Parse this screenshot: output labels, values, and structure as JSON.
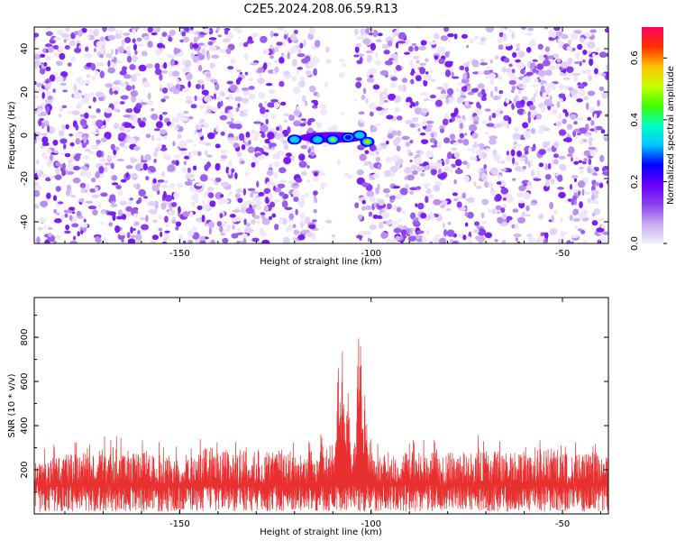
{
  "figure_title": "C2E5.2024.208.06.59.R13",
  "chart_data": [
    {
      "type": "heatmap",
      "title": "C2E5.2024.208.06.59.R13",
      "xlabel": "Height of straight line (km)",
      "ylabel": "Frequency (Hz)",
      "xlim": [
        -188,
        -38
      ],
      "ylim": [
        -50,
        50
      ],
      "x_ticks": [
        -150,
        -100,
        -50
      ],
      "y_ticks": [
        -40,
        -20,
        0,
        20,
        40
      ],
      "grid": false,
      "colorbar": {
        "label": "Normalized spectral amplitude",
        "range": [
          0.0,
          0.7
        ],
        "ticks": [
          0.0,
          0.2,
          0.4,
          0.6
        ],
        "colormap": [
          "#f2f0ff",
          "#c7a8f0",
          "#8a3cf0",
          "#6a00ff",
          "#0000ff",
          "#00c8ff",
          "#00ffc0",
          "#40ff00",
          "#c8ff00",
          "#ffc000",
          "#ff3000",
          "#ff0060"
        ]
      },
      "background_color": "#ffffff",
      "noise_color": "#8a3cf0",
      "empty_band_km": [
        -114,
        -104
      ],
      "signal_features": [
        {
          "x": -120,
          "y": -2,
          "amplitude": 0.3
        },
        {
          "x": -114,
          "y": -2,
          "amplitude": 0.25
        },
        {
          "x": -110,
          "y": -2,
          "amplitude": 0.5
        },
        {
          "x": -106,
          "y": -1,
          "amplitude": 0.35
        },
        {
          "x": -103,
          "y": 0,
          "amplitude": 0.4
        },
        {
          "x": -101,
          "y": -3,
          "amplitude": 0.6
        }
      ]
    },
    {
      "type": "line",
      "xlabel": "Height of straight line (km)",
      "ylabel": "SNR (10 * v/v)",
      "xlim": [
        -188,
        -38
      ],
      "ylim": [
        0,
        980
      ],
      "x_ticks": [
        -150,
        -100,
        -50
      ],
      "y_ticks": [
        200,
        400,
        600,
        800
      ],
      "grid": false,
      "line_color": "#e83030",
      "baseline_snr": 130,
      "noise_peak_snr": [
        {
          "x": -188,
          "value": 270
        },
        {
          "x": -183,
          "value": 320
        },
        {
          "x": -177,
          "value": 340
        },
        {
          "x": -169,
          "value": 370
        },
        {
          "x": -160,
          "value": 350
        },
        {
          "x": -150,
          "value": 310
        },
        {
          "x": -142,
          "value": 380
        },
        {
          "x": -130,
          "value": 350
        },
        {
          "x": -122,
          "value": 340
        },
        {
          "x": -118,
          "value": 330
        },
        {
          "x": -95,
          "value": 330
        },
        {
          "x": -90,
          "value": 350
        },
        {
          "x": -80,
          "value": 340
        },
        {
          "x": -72,
          "value": 360
        },
        {
          "x": -62,
          "value": 340
        },
        {
          "x": -53,
          "value": 380
        },
        {
          "x": -48,
          "value": 330
        },
        {
          "x": -43,
          "value": 345
        },
        {
          "x": -38,
          "value": 320
        }
      ],
      "signal_peaks": [
        {
          "x": -116,
          "value": 400
        },
        {
          "x": -113,
          "value": 400
        },
        {
          "x": -108.5,
          "value": 750
        },
        {
          "x": -107.5,
          "value": 740
        },
        {
          "x": -106,
          "value": 580
        },
        {
          "x": -104.5,
          "value": 420
        },
        {
          "x": -103,
          "value": 980
        },
        {
          "x": -101.5,
          "value": 620
        },
        {
          "x": -100,
          "value": 350
        }
      ]
    }
  ]
}
